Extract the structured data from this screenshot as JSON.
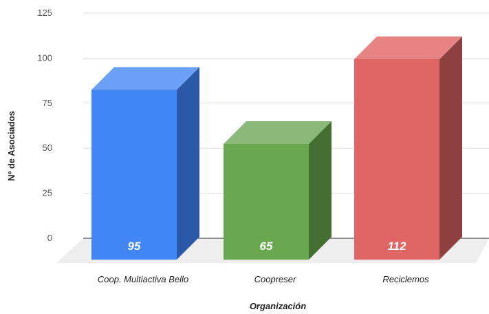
{
  "chart_data": {
    "type": "bar",
    "categories": [
      "Coop. Multiactiva Bello",
      "Coopreser",
      "Reciclemos"
    ],
    "values": [
      95,
      65,
      112
    ],
    "data_labels": [
      "95",
      "65",
      "112"
    ],
    "xlabel": "Organización",
    "ylabel": "Nº de Asociados",
    "yticks": [
      "0",
      "25",
      "50",
      "75",
      "100",
      "125"
    ],
    "ylim": [
      0,
      125
    ],
    "grid": true,
    "legend": "none",
    "style": "3d",
    "colors": [
      {
        "front": "#4285f4",
        "top": "#6ba0f7",
        "side": "#2c58a8"
      },
      {
        "front": "#6aa84f",
        "top": "#8ab97a",
        "side": "#456e33"
      },
      {
        "front": "#e06666",
        "top": "#e88383",
        "side": "#8f4141"
      }
    ]
  }
}
